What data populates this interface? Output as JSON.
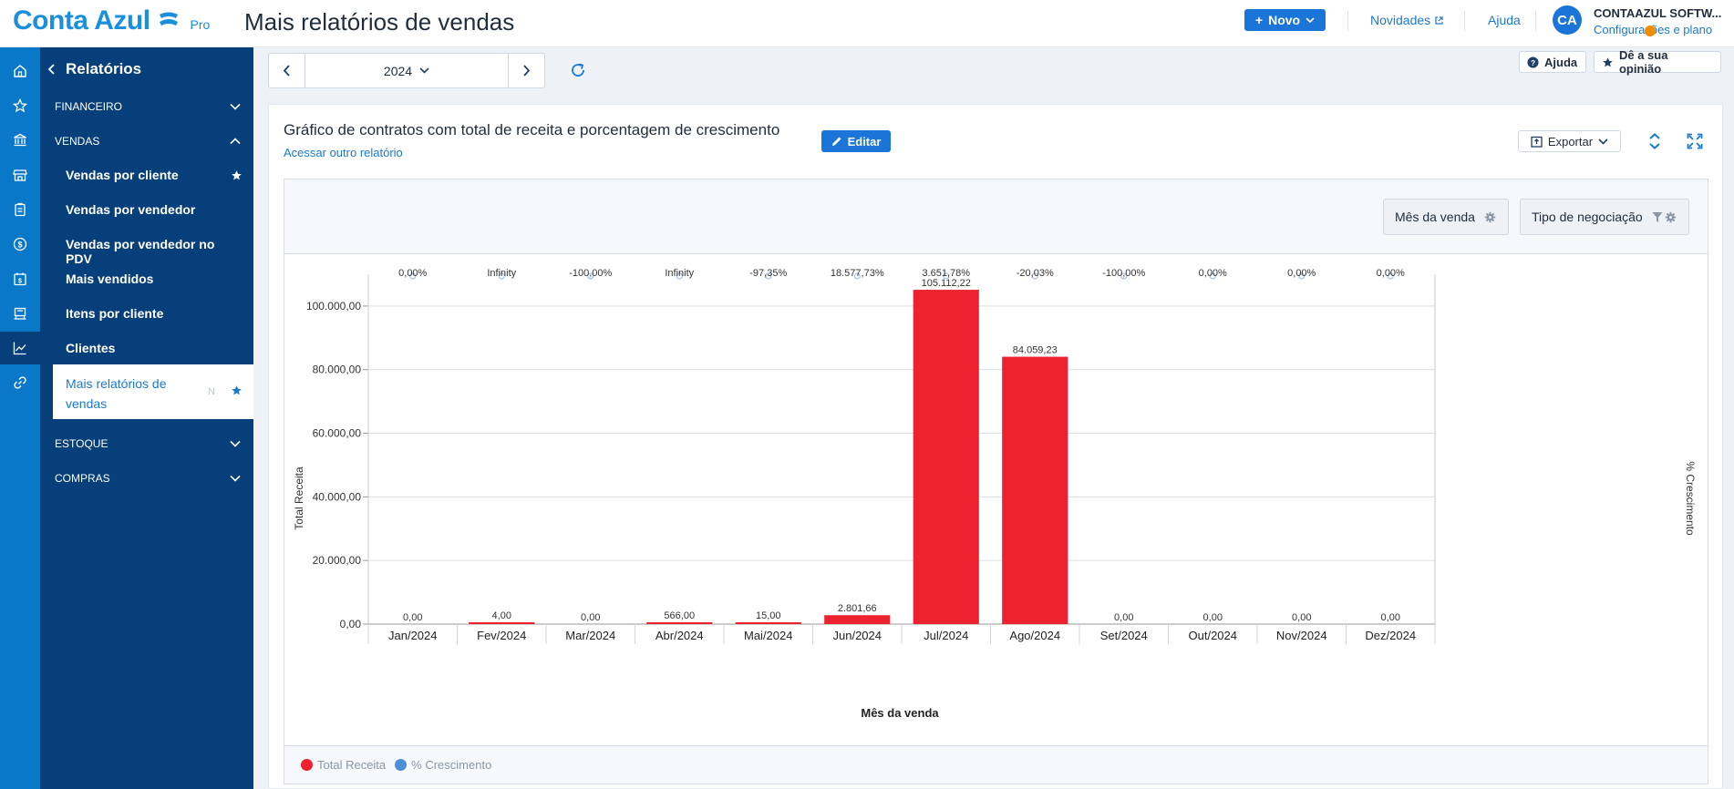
{
  "app": {
    "logo_text": "Conta Azul",
    "logo_badge": "Pro",
    "page_title": "Mais relatórios de vendas"
  },
  "topbar": {
    "new_button": "Novo",
    "news_link": "Novidades",
    "help_link": "Ajuda",
    "avatar_initials": "CA",
    "company_name": "CONTAAZUL SOFTW...",
    "settings_link": "Configurações e plano"
  },
  "rail": {
    "icons": [
      "home-icon",
      "star-icon",
      "bank-icon",
      "store-icon",
      "clipboard-icon",
      "dollar-icon",
      "calendar-dollar-icon",
      "register-icon",
      "chart-line-icon",
      "link-icon"
    ],
    "active_index": 8
  },
  "sidebar": {
    "header": "Relatórios",
    "sections": {
      "financeiro": "FINANCEIRO",
      "vendas": "VENDAS",
      "estoque": "ESTOQUE",
      "compras": "COMPRAS"
    },
    "vendas_items": [
      {
        "label": "Vendas por cliente",
        "starred": true
      },
      {
        "label": "Vendas por vendedor",
        "starred": false
      },
      {
        "label": "Vendas por vendedor no PDV",
        "starred": false
      },
      {
        "label": "Mais vendidos",
        "starred": false
      },
      {
        "label": "Itens por cliente",
        "starred": false
      },
      {
        "label": "Clientes",
        "starred": false
      }
    ],
    "active_item": {
      "label": "Mais relatórios de vendas",
      "badge": "N"
    }
  },
  "period": {
    "year": "2024"
  },
  "header_buttons": {
    "help": "Ajuda",
    "feedback": "Dê a sua opinião"
  },
  "report": {
    "title": "Gráfico de contratos com total de receita e porcentagem de crescimento",
    "edit_button": "Editar",
    "other_report_link": "Acessar outro relatório",
    "export_button": "Exportar",
    "dimension_pill": "Mês da venda",
    "filter_pill": "Tipo de negociação"
  },
  "colors": {
    "brand": "#1a8fdc",
    "primary_button": "#1b74d8",
    "sidebar": "#063f7a",
    "rail": "#0a78c9",
    "bar": "#ee222e",
    "growth": "#4a90d9"
  },
  "chart_data": {
    "type": "bar",
    "categories": [
      "Jan/2024",
      "Fev/2024",
      "Mar/2024",
      "Abr/2024",
      "Mai/2024",
      "Jun/2024",
      "Jul/2024",
      "Ago/2024",
      "Set/2024",
      "Out/2024",
      "Nov/2024",
      "Dez/2024"
    ],
    "series": [
      {
        "name": "Total Receita",
        "values": [
          0,
          4,
          0,
          566,
          15,
          2801.66,
          105112.22,
          84059.23,
          0,
          0,
          0,
          0
        ],
        "labels": [
          "0,00",
          "4,00",
          "0,00",
          "566,00",
          "15,00",
          "2.801,66",
          "105.112,22",
          "84.059,23",
          "0,00",
          "0,00",
          "0,00",
          "0,00"
        ]
      },
      {
        "name": "% Crescimento",
        "labels": [
          "0,00%",
          "Infinity",
          "-100,00%",
          "Infinity",
          "-97,35%",
          "18.577,73%",
          "3.651,78%",
          "-20,03%",
          "-100,00%",
          "0,00%",
          "0,00%",
          "0,00%"
        ]
      }
    ],
    "xlabel": "Mês da venda",
    "ylabel": "Total Receita",
    "y2label": "% Crescimento",
    "ylim": [
      0,
      110000
    ],
    "yticks": [
      0,
      20000,
      40000,
      60000,
      80000,
      100000
    ],
    "ytick_labels": [
      "0,00",
      "20.000,00",
      "40.000,00",
      "60.000,00",
      "80.000,00",
      "100.000,00"
    ],
    "grid": true,
    "legend": "bottom-left"
  }
}
